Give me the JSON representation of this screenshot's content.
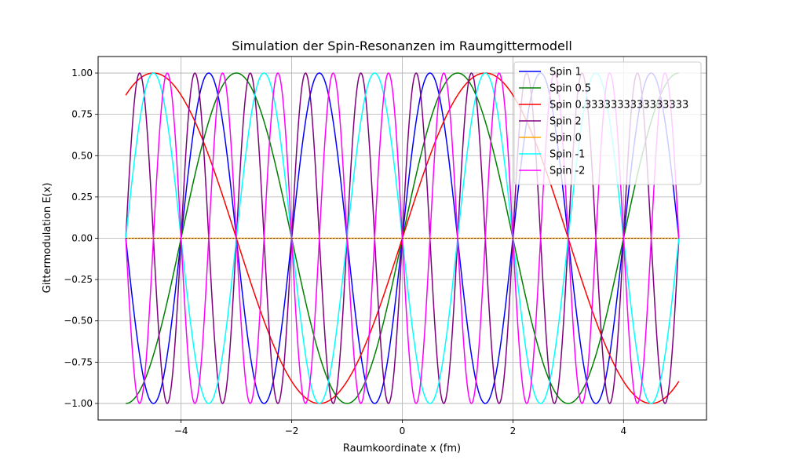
{
  "chart_data": {
    "type": "line",
    "title": "Simulation der Spin-Resonanzen im Raumgittermodell",
    "xlabel": "Raumkoordinate x (fm)",
    "ylabel": "Gittermodulation E(x)",
    "xlim": [
      -5.5,
      5.5
    ],
    "ylim": [
      -1.1,
      1.1
    ],
    "x_range": [
      -5,
      5
    ],
    "xticks": [
      -4,
      -2,
      0,
      2,
      4
    ],
    "xtick_labels": [
      "−4",
      "−2",
      "0",
      "2",
      "4"
    ],
    "yticks": [
      -1.0,
      -0.75,
      -0.5,
      -0.25,
      0.0,
      0.25,
      0.5,
      0.75,
      1.0
    ],
    "ytick_labels": [
      "−1.00",
      "−0.75",
      "−0.50",
      "−0.25",
      "0.00",
      "0.25",
      "0.50",
      "0.75",
      "1.00"
    ],
    "grid": true,
    "legend_position": "top-right",
    "function": "sin(pi * spin * x)",
    "series": [
      {
        "name": "Spin 1",
        "spin": 1,
        "color": "#0000ff"
      },
      {
        "name": "Spin 0.5",
        "spin": 0.5,
        "color": "#008000"
      },
      {
        "name": "Spin 0.3333333333333333",
        "spin": 0.3333333333333333,
        "color": "#ff0000"
      },
      {
        "name": "Spin 2",
        "spin": 2,
        "color": "#800080"
      },
      {
        "name": "Spin 0",
        "spin": 0,
        "color": "#ffa500"
      },
      {
        "name": "Spin -1",
        "spin": -1,
        "color": "#00ffff"
      },
      {
        "name": "Spin -2",
        "spin": -2,
        "color": "#ff00ff"
      }
    ],
    "reference_line": {
      "y": 0,
      "color": "#000000"
    }
  }
}
